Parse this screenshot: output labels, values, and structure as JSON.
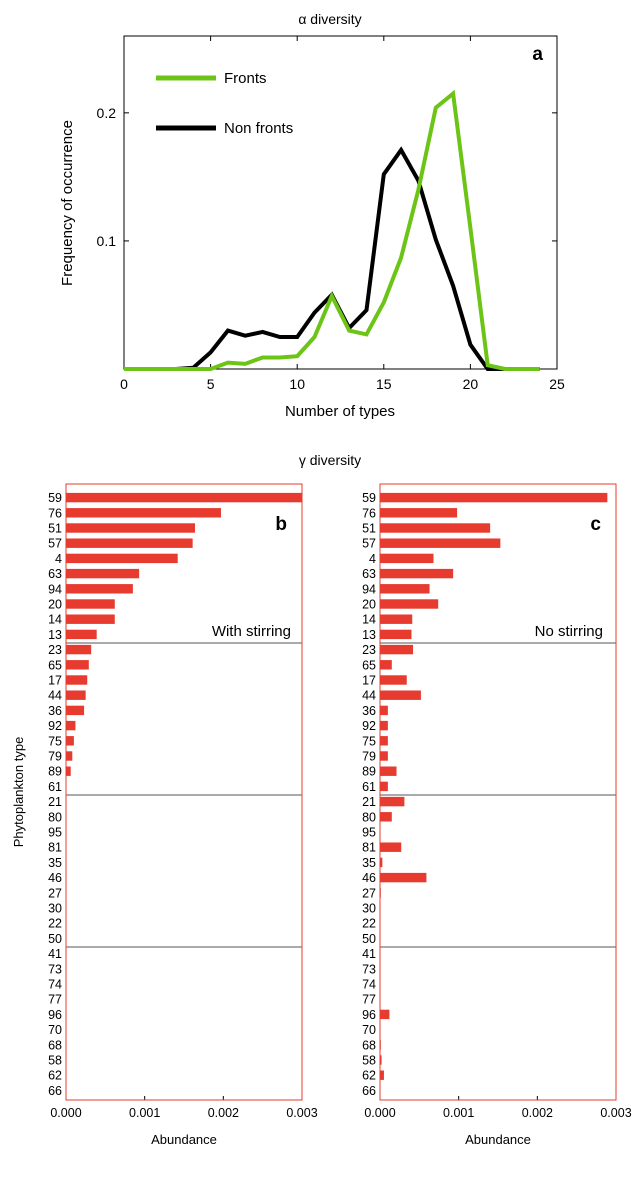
{
  "chart_data": [
    {
      "id": "a",
      "type": "line",
      "title": "α diversity",
      "panel_label": "a",
      "xlabel": "Number of types",
      "ylabel": "Frequency of occurrence",
      "xlim": [
        0,
        25
      ],
      "ylim": [
        0,
        0.26
      ],
      "xticks": [
        0,
        5,
        10,
        15,
        20,
        25
      ],
      "yticks": [
        0.1,
        0.2
      ],
      "xtick_labels": [
        "0",
        "5",
        "10",
        "15",
        "20",
        "25"
      ],
      "ytick_labels": [
        "0.1",
        "0.2"
      ],
      "legend_position": "top-left",
      "grid": false,
      "x": [
        0,
        1,
        2,
        3,
        4,
        5,
        6,
        7,
        8,
        9,
        10,
        11,
        12,
        13,
        14,
        15,
        16,
        17,
        18,
        19,
        20,
        21,
        22,
        23,
        24
      ],
      "series": [
        {
          "name": "Fronts",
          "color": "#6cc417",
          "values": [
            0,
            0,
            0,
            0,
            0,
            0,
            0.005,
            0.004,
            0.009,
            0.009,
            0.01,
            0.025,
            0.057,
            0.03,
            0.027,
            0.052,
            0.087,
            0.14,
            0.204,
            0.215,
            0.11,
            0.003,
            0,
            0,
            0
          ]
        },
        {
          "name": "Non fronts",
          "color": "#000000",
          "values": [
            0,
            0,
            0,
            0,
            0.001,
            0.013,
            0.03,
            0.026,
            0.029,
            0.025,
            0.025,
            0.044,
            0.058,
            0.032,
            0.046,
            0.152,
            0.171,
            0.147,
            0.101,
            0.065,
            0.019,
            0,
            0,
            0,
            0
          ]
        }
      ]
    },
    {
      "id": "b",
      "type": "bar",
      "orientation": "horizontal",
      "title": "γ diversity",
      "panel_label": "b",
      "annotation": "With stirring",
      "xlabel": "Abundance",
      "ylabel": "Phytoplankton type",
      "xlim": [
        0,
        0.003
      ],
      "xticks": [
        0,
        0.001,
        0.002,
        0.003
      ],
      "xtick_labels": [
        "0.000",
        "0.001",
        "0.002",
        "0.003"
      ],
      "bar_color": "#e63b2e",
      "group_dividers_after": [
        10,
        20,
        30
      ],
      "categories": [
        "59",
        "76",
        "51",
        "57",
        "4",
        "63",
        "94",
        "20",
        "14",
        "13",
        "23",
        "65",
        "17",
        "44",
        "36",
        "92",
        "75",
        "79",
        "89",
        "61",
        "21",
        "80",
        "95",
        "81",
        "35",
        "46",
        "27",
        "30",
        "22",
        "50",
        "41",
        "73",
        "74",
        "77",
        "96",
        "70",
        "68",
        "58",
        "62",
        "66"
      ],
      "values": [
        0.003,
        0.00197,
        0.00164,
        0.00161,
        0.00142,
        0.00093,
        0.00085,
        0.00062,
        0.00062,
        0.00039,
        0.00032,
        0.00029,
        0.00027,
        0.00025,
        0.00023,
        0.00012,
        0.0001,
        8e-05,
        6e-05,
        0,
        0,
        0,
        0,
        0,
        0,
        0,
        0,
        0,
        0,
        0,
        0,
        0,
        0,
        0,
        0,
        0,
        0,
        0,
        0,
        0
      ]
    },
    {
      "id": "c",
      "type": "bar",
      "orientation": "horizontal",
      "panel_label": "c",
      "annotation": "No stirring",
      "xlabel": "Abundance",
      "xlim": [
        0,
        0.003
      ],
      "xticks": [
        0,
        0.001,
        0.002,
        0.003
      ],
      "xtick_labels": [
        "0.000",
        "0.001",
        "0.002",
        "0.003"
      ],
      "bar_color": "#e63b2e",
      "group_dividers_after": [
        10,
        20,
        30
      ],
      "categories": [
        "59",
        "76",
        "51",
        "57",
        "4",
        "63",
        "94",
        "20",
        "14",
        "13",
        "23",
        "65",
        "17",
        "44",
        "36",
        "92",
        "75",
        "79",
        "89",
        "61",
        "21",
        "80",
        "95",
        "81",
        "35",
        "46",
        "27",
        "30",
        "22",
        "50",
        "41",
        "73",
        "74",
        "77",
        "96",
        "70",
        "68",
        "58",
        "62",
        "66"
      ],
      "values": [
        0.00289,
        0.00098,
        0.0014,
        0.00153,
        0.00068,
        0.00093,
        0.00063,
        0.00074,
        0.00041,
        0.0004,
        0.00042,
        0.00015,
        0.00034,
        0.00052,
        0.0001,
        0.0001,
        0.0001,
        0.0001,
        0.00021,
        0.0001,
        0.00031,
        0.00015,
        0,
        0.00027,
        3e-05,
        0.00059,
        1e-05,
        0,
        0,
        0,
        0,
        0,
        0,
        0,
        0.00012,
        0,
        1e-05,
        2e-05,
        5e-05,
        0
      ]
    }
  ]
}
